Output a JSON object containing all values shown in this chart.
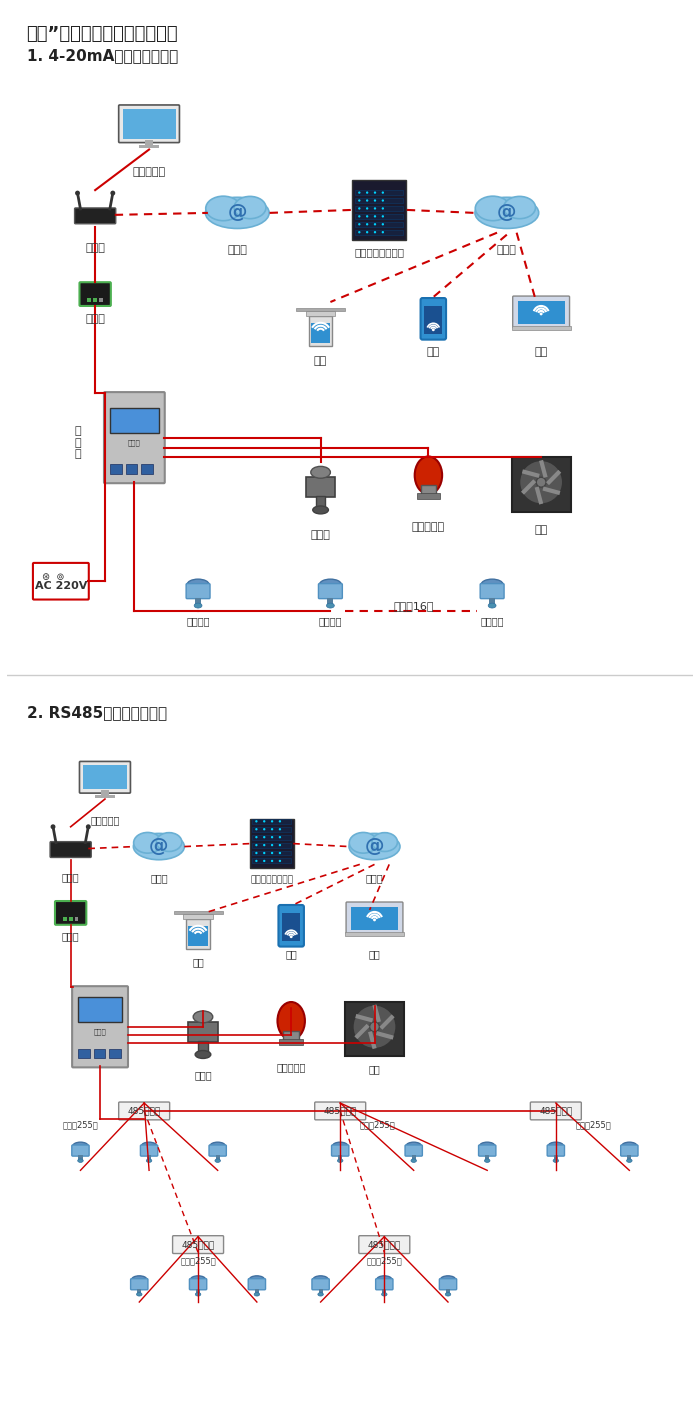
{
  "title1": "大众”系列带显示固定式检测仪",
  "subtitle1": "1. 4-20mA信号连接系统图",
  "subtitle2": "2. RS485信号连接系统图",
  "bg_color": "#ffffff",
  "line_color_red": "#cc0000",
  "line_color_dashed": "#cc0000",
  "text_color": "#222222",
  "label_单机版电脑": "单机版电脑",
  "label_路由器": "路由器",
  "label_互联网1": "互联网",
  "label_服务器": "安帕尔网络服务器",
  "label_互联网2": "互联网",
  "label_电脑": "电脑",
  "label_手机": "手机",
  "label_终端": "终端",
  "label_转换器": "转换器",
  "label_通讯线": "通\n讯\n线",
  "label_电磁阀": "电磁阀",
  "label_声光报警器": "声光报警器",
  "label_风机": "风机",
  "label_AC220V": "AC 220V",
  "label_信号输出1": "信号输出",
  "label_信号输出2": "信号输出",
  "label_信号输出3": "信号输出",
  "label_可连接16个": "可连接16个",
  "label_485中继器1": "485中继器",
  "label_485中继器2": "485中继器",
  "label_485中继器3": "485中继器",
  "label_485中继器4": "485中继器",
  "label_485中继器5": "485中继器",
  "label_可连接255台1": "可连接255台",
  "label_可连接255台2": "可连接255台",
  "label_可连接255台3": "可连接255台",
  "label_可连接255台4": "可连接255台",
  "label_可连接255台5": "可连接255台"
}
